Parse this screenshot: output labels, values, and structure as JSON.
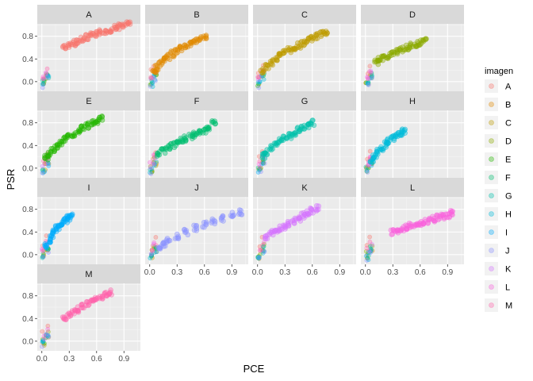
{
  "chart_data": {
    "type": "scatter",
    "facet_by": "imagen",
    "layout": "facet_wrap",
    "ncol": 4,
    "xlabel": "PCE",
    "ylabel": "PSR",
    "xlim": [
      -0.05,
      1.08
    ],
    "ylim": [
      -0.17,
      1.02
    ],
    "x_ticks": [
      0.0,
      0.3,
      0.6,
      0.9
    ],
    "x_tick_labels": [
      "0.0",
      "0.3",
      "0.6",
      "0.9"
    ],
    "y_ticks": [
      0.0,
      0.4,
      0.8
    ],
    "y_tick_labels": [
      "0.0",
      "0.4",
      "0.8"
    ],
    "grid": true,
    "point_alpha": 0.4,
    "legend": {
      "title": "imagen",
      "position": "right",
      "entries": [
        {
          "label": "A",
          "color": "#F8766D"
        },
        {
          "label": "B",
          "color": "#E18A00"
        },
        {
          "label": "C",
          "color": "#BE9C00"
        },
        {
          "label": "D",
          "color": "#8CAB00"
        },
        {
          "label": "E",
          "color": "#24B700"
        },
        {
          "label": "F",
          "color": "#00BE70"
        },
        {
          "label": "G",
          "color": "#00C1AB"
        },
        {
          "label": "H",
          "color": "#00BBDA"
        },
        {
          "label": "I",
          "color": "#00ACFC"
        },
        {
          "label": "J",
          "color": "#8B93FF"
        },
        {
          "label": "K",
          "color": "#D575FE"
        },
        {
          "label": "L",
          "color": "#F962DD"
        },
        {
          "label": "M",
          "color": "#FF65AC"
        }
      ]
    },
    "series": [
      {
        "name": "A",
        "x": [
          0.25,
          0.3,
          0.35,
          0.4,
          0.45,
          0.5,
          0.55,
          0.6,
          0.65,
          0.7,
          0.75,
          0.8,
          0.85,
          0.9,
          0.95
        ],
        "y": [
          0.6,
          0.64,
          0.68,
          0.72,
          0.75,
          0.78,
          0.81,
          0.84,
          0.87,
          0.89,
          0.92,
          0.95,
          0.97,
          1.0,
          1.02
        ]
      },
      {
        "name": "B",
        "x": [
          0.05,
          0.08,
          0.12,
          0.16,
          0.2,
          0.25,
          0.3,
          0.35,
          0.4,
          0.45,
          0.5,
          0.55,
          0.6
        ],
        "y": [
          0.18,
          0.25,
          0.32,
          0.38,
          0.43,
          0.49,
          0.54,
          0.59,
          0.63,
          0.67,
          0.71,
          0.75,
          0.79
        ]
      },
      {
        "name": "C",
        "x": [
          0.05,
          0.1,
          0.15,
          0.2,
          0.25,
          0.3,
          0.35,
          0.4,
          0.45,
          0.5,
          0.55,
          0.6,
          0.65,
          0.7,
          0.75
        ],
        "y": [
          0.18,
          0.27,
          0.34,
          0.4,
          0.46,
          0.51,
          0.56,
          0.6,
          0.64,
          0.68,
          0.72,
          0.76,
          0.8,
          0.84,
          0.88
        ]
      },
      {
        "name": "D",
        "x": [
          0.12,
          0.15,
          0.2,
          0.25,
          0.3,
          0.35,
          0.4,
          0.45,
          0.5,
          0.55,
          0.6,
          0.65
        ],
        "y": [
          0.33,
          0.38,
          0.42,
          0.46,
          0.5,
          0.53,
          0.57,
          0.6,
          0.63,
          0.66,
          0.69,
          0.71
        ]
      },
      {
        "name": "E",
        "x": [
          0.05,
          0.08,
          0.12,
          0.16,
          0.2,
          0.25,
          0.3,
          0.35,
          0.4,
          0.45,
          0.5,
          0.55,
          0.6,
          0.65
        ],
        "y": [
          0.18,
          0.25,
          0.32,
          0.38,
          0.44,
          0.5,
          0.55,
          0.6,
          0.65,
          0.7,
          0.75,
          0.79,
          0.83,
          0.87
        ]
      },
      {
        "name": "F",
        "x": [
          0.1,
          0.15,
          0.2,
          0.25,
          0.3,
          0.35,
          0.4,
          0.45,
          0.5,
          0.55,
          0.6,
          0.65,
          0.7
        ],
        "y": [
          0.25,
          0.31,
          0.36,
          0.4,
          0.44,
          0.48,
          0.52,
          0.55,
          0.59,
          0.63,
          0.67,
          0.71,
          0.8
        ]
      },
      {
        "name": "G",
        "x": [
          0.07,
          0.1,
          0.15,
          0.2,
          0.25,
          0.3,
          0.35,
          0.4,
          0.45,
          0.5,
          0.55,
          0.6
        ],
        "y": [
          0.22,
          0.28,
          0.35,
          0.41,
          0.47,
          0.52,
          0.57,
          0.62,
          0.67,
          0.72,
          0.76,
          0.8
        ]
      },
      {
        "name": "H",
        "x": [
          0.07,
          0.1,
          0.14,
          0.18,
          0.22,
          0.26,
          0.3,
          0.34,
          0.38,
          0.42
        ],
        "y": [
          0.15,
          0.22,
          0.29,
          0.36,
          0.42,
          0.48,
          0.53,
          0.58,
          0.62,
          0.64
        ]
      },
      {
        "name": "I",
        "x": [
          0.05,
          0.08,
          0.11,
          0.14,
          0.17,
          0.2,
          0.23,
          0.26,
          0.29,
          0.32
        ],
        "y": [
          0.17,
          0.25,
          0.33,
          0.4,
          0.46,
          0.51,
          0.56,
          0.6,
          0.64,
          0.67
        ]
      },
      {
        "name": "J",
        "x": [
          0.1,
          0.15,
          0.2,
          0.3,
          0.4,
          0.5,
          0.6,
          0.7,
          0.8,
          0.9,
          1.0
        ],
        "y": [
          0.12,
          0.18,
          0.24,
          0.33,
          0.4,
          0.47,
          0.53,
          0.59,
          0.64,
          0.7,
          0.74
        ]
      },
      {
        "name": "K",
        "x": [
          0.1,
          0.15,
          0.2,
          0.25,
          0.3,
          0.35,
          0.4,
          0.45,
          0.5,
          0.55,
          0.6,
          0.65
        ],
        "y": [
          0.33,
          0.38,
          0.42,
          0.46,
          0.5,
          0.55,
          0.6,
          0.64,
          0.69,
          0.73,
          0.78,
          0.82
        ]
      },
      {
        "name": "L",
        "x": [
          0.3,
          0.35,
          0.4,
          0.45,
          0.5,
          0.55,
          0.6,
          0.65,
          0.7,
          0.75,
          0.8,
          0.85,
          0.9,
          0.95
        ],
        "y": [
          0.4,
          0.43,
          0.46,
          0.48,
          0.51,
          0.53,
          0.56,
          0.58,
          0.6,
          0.63,
          0.65,
          0.67,
          0.7,
          0.73
        ]
      },
      {
        "name": "M",
        "x": [
          0.25,
          0.3,
          0.35,
          0.4,
          0.45,
          0.5,
          0.55,
          0.6,
          0.65,
          0.7,
          0.75
        ],
        "y": [
          0.42,
          0.47,
          0.52,
          0.56,
          0.61,
          0.65,
          0.7,
          0.74,
          0.78,
          0.82,
          0.86
        ]
      }
    ]
  }
}
